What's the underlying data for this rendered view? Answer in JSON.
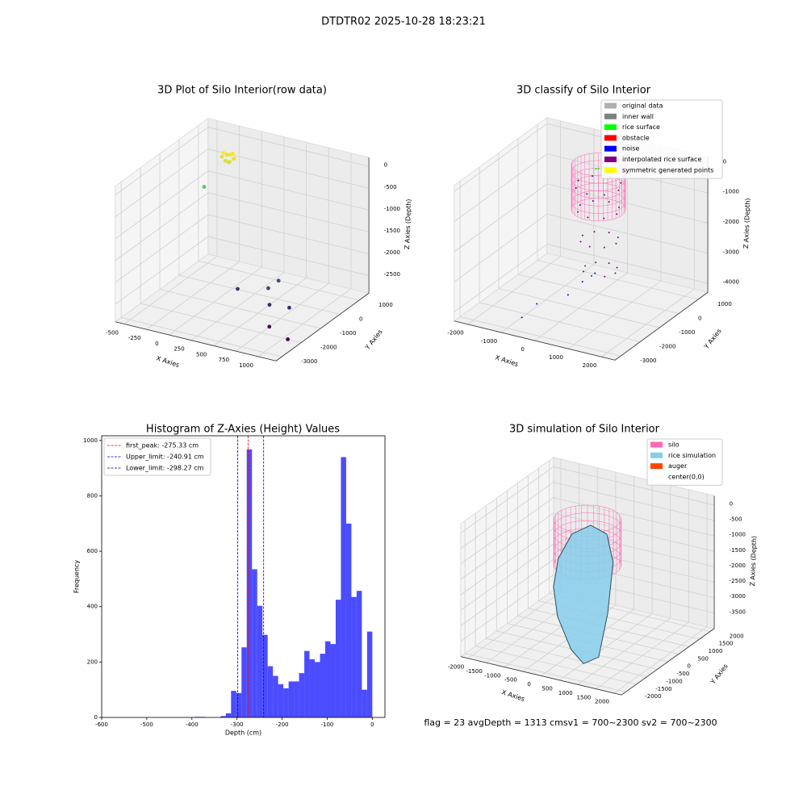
{
  "title": "DTDTR02 2025-10-28 18:23:21",
  "footer": "flag = 23  avgDepth = 1313 cmsv1 = 700~2300  sv2 = 700~2300",
  "chart_data": [
    {
      "type": "scatter3d",
      "title": "3D Plot of Silo Interior(row data)",
      "xlabel": "X Axies",
      "ylabel": "Y Axies",
      "zlabel": "Z Axies (Depth)",
      "xlim": [
        -600,
        1200
      ],
      "ylim": [
        -3300,
        1500
      ],
      "zlim": [
        -2900,
        200
      ],
      "xticks": [
        -500,
        -250,
        0,
        250,
        500,
        750,
        1000
      ],
      "yticks": [
        -3000,
        -2000,
        -1000,
        0,
        1000
      ],
      "zticks": [
        -2500,
        -2000,
        -1500,
        -1000,
        -500,
        0
      ],
      "cmap": "viridis",
      "x": [
        -350,
        -300,
        -250,
        -320,
        -280,
        -230,
        -380,
        -300,
        -260,
        -340,
        -450,
        600,
        550,
        250,
        650,
        850,
        800,
        1050
      ],
      "y": [
        1150,
        1250,
        1200,
        1100,
        1300,
        1150,
        1200,
        1180,
        1050,
        1280,
        600,
        -400,
        -700,
        -900,
        -1100,
        -1000,
        -1800,
        -2000
      ],
      "z": [
        -350,
        -400,
        -450,
        -500,
        -380,
        -420,
        -470,
        -550,
        -480,
        -430,
        -1000,
        -2300,
        -2400,
        -2500,
        -2600,
        -2600,
        -2800,
        -2900
      ]
    },
    {
      "type": "classify3d",
      "title": "3D classify of Silo Interior",
      "xlabel": "X Axies",
      "ylabel": "Y Axies",
      "zlabel": "Z Axies (Depth)",
      "xlim": [
        -2400,
        2400
      ],
      "ylim": [
        -3300,
        1500
      ],
      "zlim": [
        -4300,
        200
      ],
      "xticks": [
        -2000,
        -1000,
        0,
        1000,
        2000
      ],
      "yticks": [
        -3000,
        -2000,
        -1000,
        0,
        1000
      ],
      "zticks": [
        -4000,
        -3000,
        -2000,
        -1000,
        0
      ],
      "cylinder": {
        "radius": 700,
        "zlim": [
          -1500,
          0
        ],
        "color": "#ff69b4"
      },
      "series": [
        {
          "name": "original data",
          "color": "#b0b0b0"
        },
        {
          "name": "inner wall",
          "color": "#808080"
        },
        {
          "name": "rice surface",
          "color": "#00ff00",
          "x": [
            0,
            150,
            -100
          ],
          "y": [
            0,
            100,
            50
          ],
          "z": [
            -150,
            -250,
            -200
          ]
        },
        {
          "name": "obstacle",
          "color": "#ff0000"
        },
        {
          "name": "noise",
          "color": "#0000ff",
          "x": [
            -100,
            100,
            -800,
            -900,
            300,
            0
          ],
          "y": [
            -1400,
            -1000,
            -1800,
            -2400,
            -700,
            200
          ],
          "z": [
            -3700,
            -3400,
            -4000,
            -4200,
            -3200,
            -50
          ]
        },
        {
          "name": "interpolated rice surface",
          "color": "#800080",
          "x": [
            600,
            424,
            0,
            -424,
            -600,
            -424,
            0,
            424,
            550,
            389,
            0,
            -389,
            -550,
            -389,
            0,
            389,
            700,
            554,
            200,
            -154,
            -300,
            -154,
            200,
            554,
            850,
            718,
            400,
            82,
            -50,
            82,
            400,
            718
          ],
          "y": [
            0,
            424,
            600,
            424,
            0,
            -424,
            -600,
            -424,
            0,
            389,
            550,
            389,
            0,
            -389,
            -550,
            -389,
            -300,
            54,
            200,
            54,
            -300,
            -654,
            -800,
            -654,
            -600,
            -282,
            -150,
            -282,
            -600,
            -918,
            -1050,
            -918
          ],
          "z": [
            -700,
            -700,
            -700,
            -700,
            -700,
            -700,
            -700,
            -700,
            -1500,
            -1500,
            -1500,
            -1500,
            -1500,
            -1500,
            -1500,
            -1500,
            -2300,
            -2300,
            -2300,
            -2300,
            -2300,
            -2300,
            -2300,
            -2300,
            -3100,
            -3100,
            -3100,
            -3100,
            -3100,
            -3100,
            -3100,
            -3100
          ]
        },
        {
          "name": "symmetric generated points",
          "color": "#ffff00"
        }
      ]
    },
    {
      "type": "histogram",
      "title": "Histogram of Z-Axies (Height) Values",
      "xlabel": "Depth (cm)",
      "ylabel": "Frequency",
      "xlim": [
        -600,
        28
      ],
      "ylim": [
        0,
        1017
      ],
      "xticks": [
        -600,
        -500,
        -400,
        -300,
        -200,
        -100,
        0
      ],
      "yticks": [
        0,
        200,
        400,
        600,
        800,
        1000
      ],
      "color": "#0000ff",
      "alpha": 0.7,
      "bins": [
        -580,
        -568.4,
        -556.8,
        -545.2,
        -533.6,
        -522,
        -510.4,
        -498.8,
        -487.2,
        -475.6,
        -464,
        -452.4,
        -440.8,
        -429.2,
        -417.6,
        -406,
        -394.4,
        -382.8,
        -371.2,
        -359.6,
        -348,
        -336.4,
        -324.8,
        -313.2,
        -301.6,
        -290,
        -278.4,
        -266.8,
        -255.2,
        -243.6,
        -232,
        -220.4,
        -208.8,
        -197.2,
        -185.6,
        -174,
        -162.4,
        -150.8,
        -139.2,
        -127.6,
        -116,
        -104.4,
        -92.8,
        -81.2,
        -69.6,
        -58,
        -46.4,
        -34.8,
        -23.2,
        -11.6,
        0
      ],
      "counts": [
        0,
        0,
        0,
        0,
        0,
        0,
        0,
        0,
        0,
        0,
        0,
        0,
        0,
        0,
        0,
        0,
        2,
        2,
        0,
        0,
        0,
        5,
        15,
        96,
        88,
        253,
        968,
        535,
        403,
        298,
        185,
        150,
        120,
        105,
        130,
        130,
        160,
        240,
        210,
        200,
        230,
        275,
        265,
        425,
        940,
        700,
        435,
        457,
        100,
        310
      ],
      "vlines": [
        {
          "label": "first_peak: -275.33 cm",
          "value": -275.33,
          "color": "#ff0000"
        },
        {
          "label": "Upper_limit: -240.91 cm",
          "value": -240.91,
          "color": "#0000cd"
        },
        {
          "label": "Lower_limit: -298.27 cm",
          "value": -298.27,
          "color": "#00008b"
        }
      ]
    },
    {
      "type": "surface3d",
      "title": "3D simulation of Silo Interior",
      "xlabel": "X Axies",
      "ylabel": "Y Axies",
      "zlabel": "Z Axies (Depth)",
      "xlim": [
        -2200,
        2200
      ],
      "ylim": [
        -2200,
        2200
      ],
      "zlim": [
        -4000,
        300
      ],
      "xticks": [
        -2000,
        -1500,
        -1000,
        -500,
        0,
        500,
        1000,
        1500,
        2000
      ],
      "yticks": [
        -2000,
        -1500,
        -1000,
        -500,
        0,
        500,
        1000,
        1500,
        2000
      ],
      "zticks": [
        -3500,
        -3000,
        -2500,
        -2000,
        -1500,
        -1000,
        -500,
        0
      ],
      "cylinder": {
        "radius": 800,
        "zlim": [
          -1500,
          0
        ],
        "color": "#ff69b4"
      },
      "series": [
        {
          "name": "silo",
          "color": "#ff69b4"
        },
        {
          "name": "rice simulation",
          "color": "#87ceeb",
          "x": [
            -800,
            -600,
            -200,
            300,
            700,
            900,
            1000,
            700,
            300,
            -300,
            -700
          ],
          "y": [
            0,
            300,
            500,
            400,
            0,
            -600,
            -1200,
            -1400,
            -1300,
            -900,
            -400
          ],
          "z": [
            -1500,
            -800,
            -500,
            -600,
            -1200,
            -2500,
            -3600,
            -3800,
            -3500,
            -2800,
            -2200
          ]
        },
        {
          "name": "auger",
          "color": "#ff4500"
        },
        {
          "name": "center(0,0)",
          "color": "#ffffff"
        }
      ]
    }
  ]
}
